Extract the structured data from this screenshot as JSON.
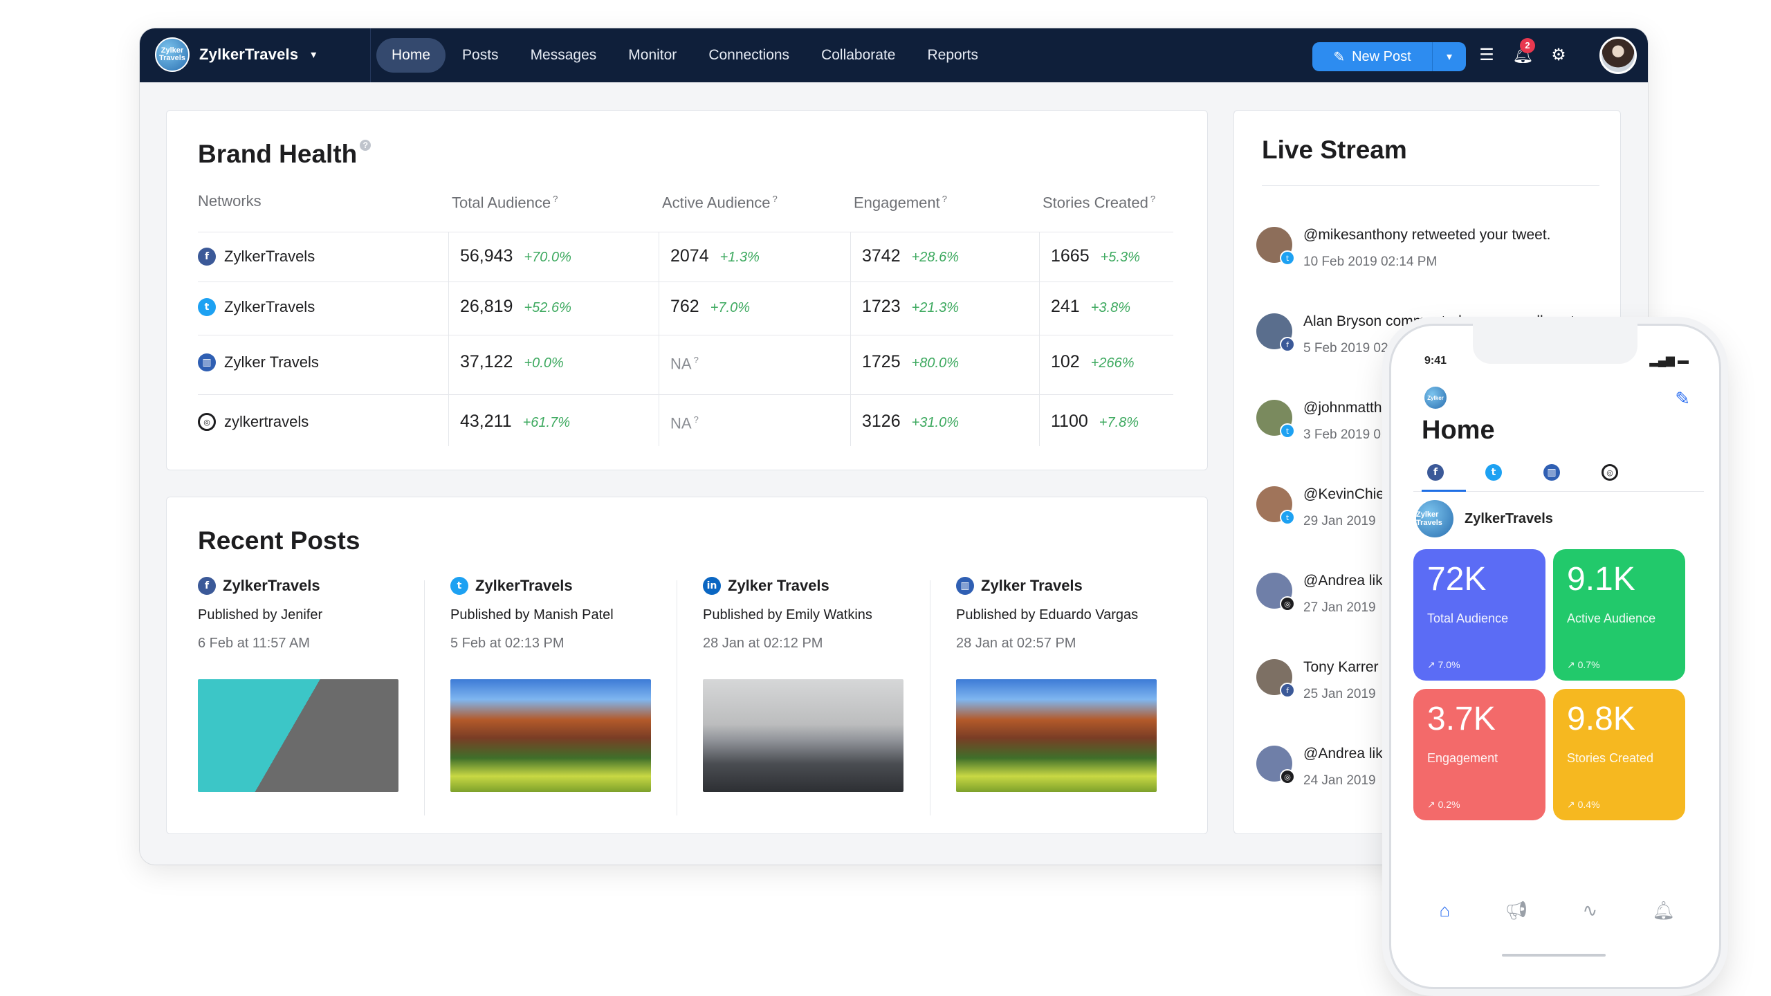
{
  "app": {
    "brand_name": "ZylkerTravels",
    "logo_text": "Zylker Travels",
    "tabs": [
      "Home",
      "Posts",
      "Messages",
      "Monitor",
      "Connections",
      "Collaborate",
      "Reports"
    ],
    "new_post_label": "New Post",
    "notification_count": "2"
  },
  "brand_health": {
    "title": "Brand Health",
    "help": "?",
    "headers": {
      "networks": "Networks",
      "total": "Total Audience",
      "active": "Active Audience",
      "engagement": "Engagement",
      "stories": "Stories Created"
    },
    "header_help": "?",
    "rows": [
      {
        "icon": "facebook-icon",
        "glyph": "f",
        "name": "ZylkerTravels",
        "total": "56,943",
        "total_chg": "+70.0%",
        "active": "2074",
        "active_chg": "+1.3%",
        "eng": "3742",
        "eng_chg": "+28.6%",
        "stories": "1665",
        "stories_chg": "+5.3%"
      },
      {
        "icon": "twitter-icon",
        "glyph": "t",
        "name": "ZylkerTravels",
        "total": "26,819",
        "total_chg": "+52.6%",
        "active": "762",
        "active_chg": "+7.0%",
        "eng": "1723",
        "eng_chg": "+21.3%",
        "stories": "241",
        "stories_chg": "+3.8%"
      },
      {
        "icon": "google-mybusiness-icon",
        "glyph": "▥",
        "name": "Zylker Travels",
        "total": "37,122",
        "total_chg": "+0.0%",
        "active": "NA",
        "active_chg": "",
        "eng": "1725",
        "eng_chg": "+80.0%",
        "stories": "102",
        "stories_chg": "+266%"
      },
      {
        "icon": "instagram-icon",
        "glyph": "◎",
        "name": "zylkertravels",
        "total": "43,211",
        "total_chg": "+61.7%",
        "active": "NA",
        "active_chg": "",
        "eng": "3126",
        "eng_chg": "+31.0%",
        "stories": "1100",
        "stories_chg": "+7.8%"
      }
    ]
  },
  "recent_posts": {
    "title": "Recent Posts",
    "posts": [
      {
        "network": "facebook-icon",
        "glyph": "f",
        "account": "ZylkerTravels",
        "published_by": "Published by Jenifer",
        "date": "6 Feb at 11:57 AM",
        "image": "dock-photo"
      },
      {
        "network": "twitter-icon",
        "glyph": "t",
        "account": "ZylkerTravels",
        "published_by": "Published by Manish Patel",
        "date": "5 Feb at 02:13 PM",
        "image": "mountain-photo"
      },
      {
        "network": "linkedin-icon",
        "glyph": "in",
        "account": "Zylker Travels",
        "published_by": "Published by Emily Watkins",
        "date": "28 Jan at 02:12 PM",
        "image": "taj-mahal-photo"
      },
      {
        "network": "google-mybusiness-icon",
        "glyph": "▥",
        "account": "Zylker Travels",
        "published_by": "Published by Eduardo Vargas",
        "date": "28 Jan at 02:57 PM",
        "image": "mountain-photo"
      }
    ]
  },
  "live_stream": {
    "title": "Live Stream",
    "items": [
      {
        "text": "@mikesanthony retweeted your tweet.",
        "time": "10 Feb 2019 02:14 PM",
        "network": "twitter-icon",
        "glyph": "t",
        "color": "#1da1f2",
        "avatar": "#8d6e5a"
      },
      {
        "text": "Alan Bryson commented on your wall post",
        "time": "5 Feb 2019 02:",
        "network": "facebook-icon",
        "glyph": "f",
        "color": "#3b5998",
        "avatar": "#5a6e8d"
      },
      {
        "text": "@johnmatth",
        "time": "3 Feb 2019 0",
        "network": "twitter-icon",
        "glyph": "t",
        "color": "#1da1f2",
        "avatar": "#7a8a5e"
      },
      {
        "text": "@KevinChie",
        "time": "29 Jan 2019",
        "network": "twitter-icon",
        "glyph": "t",
        "color": "#1da1f2",
        "avatar": "#a0745a"
      },
      {
        "text": "@Andrea like",
        "time": "27 Jan 2019",
        "network": "instagram-icon",
        "glyph": "◎",
        "color": "#1d1d1f",
        "avatar": "#6f7fa8"
      },
      {
        "text": "Tony Karrer",
        "time": "25 Jan 2019",
        "network": "facebook-icon",
        "glyph": "f",
        "color": "#3b5998",
        "avatar": "#7d7064"
      },
      {
        "text": "@Andrea like",
        "time": "24 Jan 2019",
        "network": "instagram-icon",
        "glyph": "◎",
        "color": "#1d1d1f",
        "avatar": "#6f7fa8"
      }
    ]
  },
  "phone": {
    "time": "9:41",
    "status": "▂▄▆ ▬",
    "logo_text": "Zylker",
    "title": "Home",
    "account": "ZylkerTravels",
    "account_logo": "Zylker Travels",
    "tiles": [
      {
        "value": "72K",
        "label": "Total Audience",
        "change": "↗ 7.0%",
        "color": "#5b6cf5"
      },
      {
        "value": "9.1K",
        "label": "Active Audience",
        "change": "↗ 0.7%",
        "color": "#22c96b"
      },
      {
        "value": "3.7K",
        "label": "Engagement",
        "change": "↗ 0.2%",
        "color": "#f36a6a"
      },
      {
        "value": "9.8K",
        "label": "Stories Created",
        "change": "↗ 0.4%",
        "color": "#f6b820"
      }
    ],
    "bottom_nav": [
      "home-icon",
      "megaphone-icon",
      "activity-icon",
      "bell-icon"
    ]
  },
  "colors": {
    "nav_bg": "#0f1f3a",
    "accent": "#2d8cf0",
    "positive": "#3da95f"
  }
}
